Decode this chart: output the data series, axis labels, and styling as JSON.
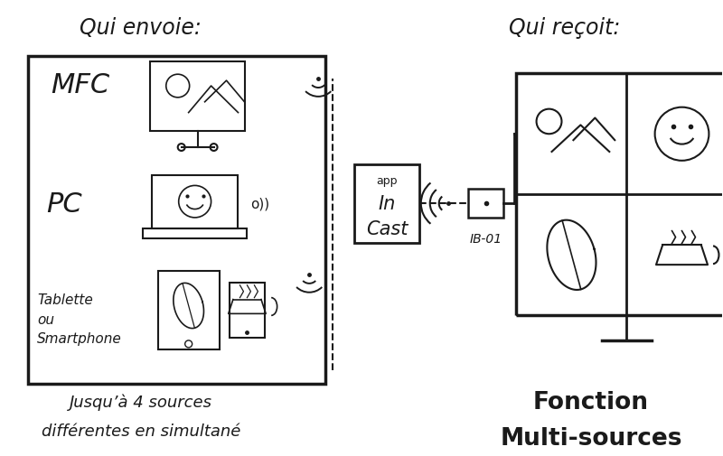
{
  "bg_color": "#ffffff",
  "ink_color": "#1a1a1a",
  "title_left": "Qui envoie:",
  "title_right": "Qui reçoit:",
  "label_mfc": "MFC",
  "label_pc": "PC",
  "label_tablet_l1": "Tablette",
  "label_tablet_l2": "ou",
  "label_tablet_l3": "Smartphone",
  "label_app_l1": "app",
  "label_app_l2": "In",
  "label_app_l3": "Cast",
  "label_ib": "IB-01",
  "footer_left_l1": "Jusqu’à 4 sources",
  "footer_left_l2": "différentes en simultané",
  "footer_right_l1": "Fonction",
  "footer_right_l2": "Multi-sources"
}
